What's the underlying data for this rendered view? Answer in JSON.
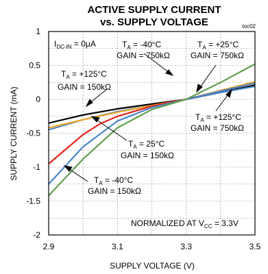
{
  "chart_data": {
    "type": "line",
    "title": "ACTIVE SUPPLY CURRENT",
    "subtitle": "vs. SUPPLY VOLTAGE",
    "code": "toc02",
    "xlabel": "SUPPLY VOLTAGE (V)",
    "ylabel": "SUPPLY CURRENT (mA)",
    "xlim": [
      2.9,
      3.5
    ],
    "ylim": [
      -2,
      1
    ],
    "x_ticks": [
      "2.9",
      "3.1",
      "3.3",
      "3.5"
    ],
    "y_ticks": [
      "-2",
      "-1.5",
      "-1",
      "-0.5",
      "0",
      "0.5",
      "1"
    ],
    "grid": true,
    "series": [
      {
        "color": "#000000",
        "x": [
          2.9,
          3.0,
          3.1,
          3.2,
          3.3,
          3.4,
          3.5
        ],
        "y": [
          -0.35,
          -0.23,
          -0.14,
          -0.07,
          0.0,
          0.1,
          0.21
        ]
      },
      {
        "color": "#4a86c8",
        "x": [
          2.9,
          3.0,
          3.1,
          3.2,
          3.3,
          3.4,
          3.5
        ],
        "y": [
          -0.45,
          -0.3,
          -0.18,
          -0.09,
          0.0,
          0.1,
          0.19
        ]
      },
      {
        "color": "#f5a623",
        "x": [
          2.9,
          3.0,
          3.1,
          3.2,
          3.3,
          3.4,
          3.5
        ],
        "y": [
          -0.42,
          -0.3,
          -0.19,
          -0.09,
          0.0,
          0.13,
          0.26
        ]
      },
      {
        "color": "#e8231a",
        "x": [
          2.9,
          3.0,
          3.05,
          3.1,
          3.2,
          3.3,
          3.4,
          3.5
        ],
        "y": [
          -0.95,
          -0.52,
          -0.36,
          -0.25,
          -0.1,
          0.0,
          0.12,
          0.24
        ]
      },
      {
        "color": "#4a86c8",
        "x": [
          2.9,
          3.0,
          3.1,
          3.2,
          3.3,
          3.4,
          3.5
        ],
        "y": [
          -1.25,
          -0.7,
          -0.32,
          -0.12,
          0.0,
          0.12,
          0.24
        ]
      },
      {
        "color": "#5fa04e",
        "x": [
          2.9,
          3.0,
          3.1,
          3.2,
          3.3,
          3.4,
          3.5
        ],
        "y": [
          -1.42,
          -0.88,
          -0.42,
          -0.15,
          0.0,
          0.25,
          0.52
        ]
      }
    ],
    "annotations": {
      "idc": "I",
      "idc_sub": "DC-IN",
      "idc_rest": " = 0μA",
      "a1_line1_pre": "T",
      "a1_sub": "A",
      "a1_line1_post": " = -40°C",
      "a1_line2": "GAIN = 750kΩ",
      "a2_line1_pre": "T",
      "a2_sub": "A",
      "a2_line1_post": " = +25°C",
      "a2_line2": "GAIN = 750kΩ",
      "a3_line1_pre": "T",
      "a3_sub": "A",
      "a3_line1_post": " = +125°C",
      "a3_line2": "GAIN = 150kΩ",
      "a4_line1_pre": "T",
      "a4_sub": "A",
      "a4_line1_post": " = +125°C",
      "a4_line2": "GAIN = 750kΩ",
      "a5_line1_pre": "T",
      "a5_sub": "A",
      "a5_line1_post": " = 25°C",
      "a5_line2": "GAIN = 150kΩ",
      "a6_line1_pre": "T",
      "a6_sub": "A",
      "a6_line1_post": " = -40°C",
      "a6_line2": "GAIN = 150kΩ",
      "norm_pre": "NORMALIZED AT V",
      "norm_sub": "CC",
      "norm_post": " = 3.3V"
    }
  }
}
